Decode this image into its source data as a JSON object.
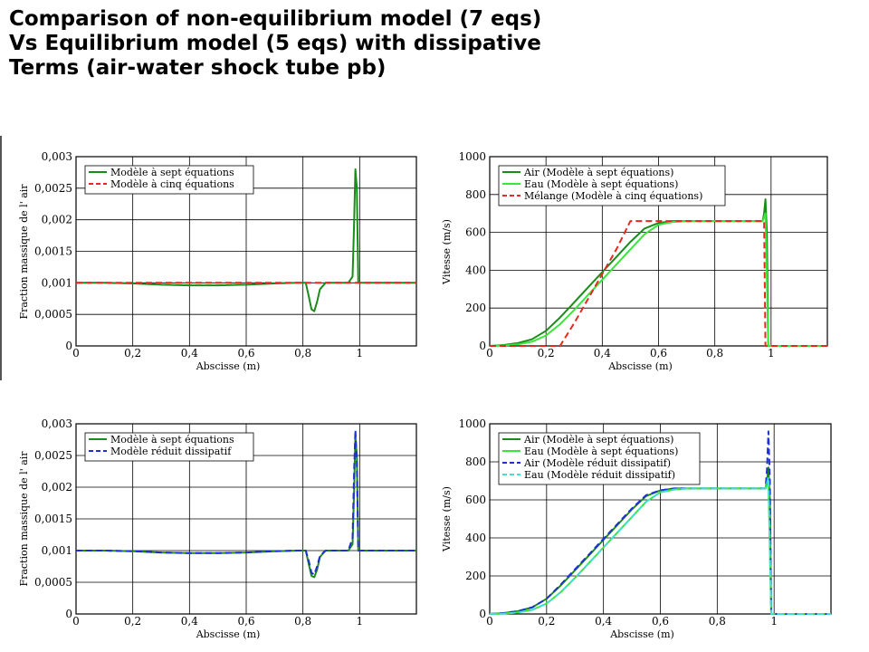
{
  "title": {
    "line1": "Comparison of non-equilibrium model (7 eqs)",
    "line2": "Vs Equilibrium model (5 eqs) with dissipative",
    "line3": "Terms (air-water shock tube pb)"
  },
  "chart_data": [
    {
      "type": "line",
      "xlabel": "Abscisse (m)",
      "ylabel": "Fraction massique de l' air",
      "xlim": [
        0,
        1.2
      ],
      "ylim": [
        0,
        0.003
      ],
      "xticks": [
        "0",
        "0,2",
        "0,4",
        "0,6",
        "0,8",
        "1"
      ],
      "yticks": [
        "0",
        "0,0005",
        "0,001",
        "0,0015",
        "0,002",
        "0,0025",
        "0,003"
      ],
      "grid": true,
      "legend_position": "top-left",
      "series": [
        {
          "name": "Modèle à sept équations",
          "color": "#1a8c1a",
          "style": "solid",
          "x": [
            0,
            0.1,
            0.2,
            0.3,
            0.4,
            0.5,
            0.6,
            0.7,
            0.78,
            0.81,
            0.82,
            0.83,
            0.84,
            0.85,
            0.86,
            0.88,
            0.92,
            0.96,
            0.975,
            0.98,
            0.985,
            0.99,
            0.995,
            1.0,
            1.1,
            1.2
          ],
          "y": [
            0.001,
            0.001,
            0.00099,
            0.00097,
            0.00096,
            0.00096,
            0.00097,
            0.00099,
            0.001,
            0.001,
            0.0008,
            0.00058,
            0.00055,
            0.0007,
            0.0009,
            0.001,
            0.001,
            0.001,
            0.0011,
            0.0019,
            0.0028,
            0.0025,
            0.001,
            0.001,
            0.001,
            0.001
          ]
        },
        {
          "name": "Modèle à cinq équations",
          "color": "#e8281e",
          "style": "dashed",
          "x": [
            0,
            0.2,
            0.4,
            0.6,
            0.8,
            1.0,
            1.2
          ],
          "y": [
            0.001,
            0.001,
            0.001,
            0.001,
            0.001,
            0.001,
            0.001
          ]
        }
      ]
    },
    {
      "type": "line",
      "xlabel": "Abscisse (m)",
      "ylabel": "Vitesse (m/s)",
      "xlim": [
        0,
        1.2
      ],
      "ylim": [
        0,
        1000
      ],
      "xticks": [
        "0",
        "0,2",
        "0,4",
        "0,6",
        "0,8",
        "1"
      ],
      "yticks": [
        "0",
        "200",
        "400",
        "600",
        "800",
        "1000"
      ],
      "grid": true,
      "legend_position": "top-left",
      "series": [
        {
          "name": "Air (Modèle à sept équations)",
          "color": "#1a8c1a",
          "style": "solid",
          "x": [
            0,
            0.05,
            0.1,
            0.15,
            0.2,
            0.25,
            0.3,
            0.35,
            0.4,
            0.45,
            0.5,
            0.55,
            0.6,
            0.65,
            0.7,
            0.8,
            0.9,
            0.97,
            0.975,
            0.98,
            0.985,
            0.99,
            1.0,
            1.1,
            1.2
          ],
          "y": [
            0,
            5,
            15,
            35,
            80,
            150,
            230,
            310,
            390,
            470,
            550,
            620,
            650,
            660,
            660,
            660,
            660,
            660,
            700,
            775,
            600,
            0,
            0,
            0,
            0
          ]
        },
        {
          "name": "Eau (Modèle à sept équations)",
          "color": "#39e639",
          "style": "solid",
          "x": [
            0,
            0.05,
            0.1,
            0.15,
            0.2,
            0.25,
            0.3,
            0.35,
            0.4,
            0.45,
            0.5,
            0.55,
            0.6,
            0.65,
            0.7,
            0.8,
            0.9,
            0.97,
            0.975,
            0.98,
            0.99,
            1.0,
            1.1,
            1.2
          ],
          "y": [
            0,
            2,
            8,
            22,
            55,
            115,
            190,
            270,
            350,
            430,
            510,
            590,
            640,
            655,
            660,
            660,
            660,
            660,
            680,
            700,
            0,
            0,
            0,
            0
          ]
        },
        {
          "name": "Mélange (Modèle à cinq équations)",
          "color": "#e8281e",
          "style": "dashed",
          "x": [
            0,
            0.25,
            0.3,
            0.35,
            0.4,
            0.45,
            0.5,
            0.55,
            0.6,
            0.7,
            0.8,
            0.9,
            0.975,
            0.98,
            1.0,
            1.1,
            1.2
          ],
          "y": [
            0,
            0,
            120,
            250,
            380,
            510,
            660,
            660,
            660,
            660,
            660,
            660,
            660,
            0,
            0,
            0,
            0
          ]
        }
      ]
    },
    {
      "type": "line",
      "xlabel": "Abscisse (m)",
      "ylabel": "Fraction massique de l' air",
      "xlim": [
        0,
        1.2
      ],
      "ylim": [
        0,
        0.003
      ],
      "xticks": [
        "0",
        "0,2",
        "0,4",
        "0,6",
        "0,8",
        "1"
      ],
      "yticks": [
        "0",
        "0,0005",
        "0,001",
        "0,0015",
        "0,002",
        "0,0025",
        "0,003"
      ],
      "grid": true,
      "legend_position": "top-left",
      "series": [
        {
          "name": "Modèle à sept équations",
          "color": "#1a8c1a",
          "style": "solid",
          "x": [
            0,
            0.1,
            0.2,
            0.3,
            0.4,
            0.5,
            0.6,
            0.7,
            0.78,
            0.81,
            0.82,
            0.83,
            0.84,
            0.85,
            0.86,
            0.88,
            0.92,
            0.96,
            0.975,
            0.98,
            0.985,
            0.99,
            0.995,
            1.0,
            1.1,
            1.2
          ],
          "y": [
            0.001,
            0.001,
            0.00099,
            0.00097,
            0.00096,
            0.00096,
            0.00097,
            0.00099,
            0.001,
            0.001,
            0.0008,
            0.0006,
            0.00058,
            0.0007,
            0.0009,
            0.001,
            0.001,
            0.001,
            0.0011,
            0.0019,
            0.0028,
            0.0025,
            0.001,
            0.001,
            0.001,
            0.001
          ]
        },
        {
          "name": "Modèle réduit dissipatif",
          "color": "#1f2fd6",
          "style": "dashed",
          "x": [
            0,
            0.1,
            0.2,
            0.3,
            0.4,
            0.5,
            0.6,
            0.7,
            0.78,
            0.81,
            0.82,
            0.83,
            0.84,
            0.85,
            0.86,
            0.88,
            0.92,
            0.96,
            0.975,
            0.98,
            0.985,
            0.99,
            0.995,
            1.0,
            1.1,
            1.2
          ],
          "y": [
            0.001,
            0.001,
            0.00099,
            0.00097,
            0.00096,
            0.00096,
            0.00097,
            0.00099,
            0.001,
            0.001,
            0.00085,
            0.00065,
            0.00062,
            0.00075,
            0.00092,
            0.001,
            0.001,
            0.001,
            0.0012,
            0.0022,
            0.0029,
            0.0024,
            0.001,
            0.001,
            0.001,
            0.001
          ]
        }
      ]
    },
    {
      "type": "line",
      "xlabel": "Abscisse (m)",
      "ylabel": "Vitesse (m/s)",
      "xlim": [
        0,
        1.2
      ],
      "ylim": [
        0,
        1000
      ],
      "xticks": [
        "0",
        "0,2",
        "0,4",
        "0,6",
        "0,8",
        "1"
      ],
      "yticks": [
        "0",
        "200",
        "400",
        "600",
        "800",
        "1000"
      ],
      "grid": true,
      "legend_position": "top-left",
      "series": [
        {
          "name": "Air (Modèle à sept équations)",
          "color": "#1a8c1a",
          "style": "solid",
          "x": [
            0,
            0.05,
            0.1,
            0.15,
            0.2,
            0.25,
            0.3,
            0.35,
            0.4,
            0.45,
            0.5,
            0.55,
            0.6,
            0.65,
            0.7,
            0.8,
            0.9,
            0.97,
            0.975,
            0.98,
            0.985,
            0.99,
            1.0,
            1.1,
            1.2
          ],
          "y": [
            0,
            5,
            15,
            35,
            80,
            150,
            230,
            310,
            390,
            470,
            550,
            620,
            650,
            660,
            660,
            660,
            660,
            660,
            700,
            770,
            600,
            0,
            0,
            0,
            0
          ]
        },
        {
          "name": "Eau (Modèle à sept équations)",
          "color": "#39e639",
          "style": "solid",
          "x": [
            0,
            0.05,
            0.1,
            0.15,
            0.2,
            0.25,
            0.3,
            0.35,
            0.4,
            0.45,
            0.5,
            0.55,
            0.6,
            0.65,
            0.7,
            0.8,
            0.9,
            0.97,
            0.975,
            0.98,
            0.99,
            1.0,
            1.1,
            1.2
          ],
          "y": [
            0,
            2,
            8,
            22,
            55,
            115,
            190,
            270,
            350,
            430,
            510,
            590,
            640,
            655,
            660,
            660,
            660,
            660,
            680,
            700,
            0,
            0,
            0,
            0
          ]
        },
        {
          "name": "Air (Modèle réduit dissipatif)",
          "color": "#1f2fd6",
          "style": "dashed",
          "x": [
            0,
            0.05,
            0.1,
            0.15,
            0.2,
            0.25,
            0.3,
            0.35,
            0.4,
            0.45,
            0.5,
            0.55,
            0.6,
            0.65,
            0.7,
            0.8,
            0.9,
            0.97,
            0.975,
            0.98,
            0.985,
            0.99,
            1.0,
            1.1,
            1.2
          ],
          "y": [
            0,
            5,
            15,
            35,
            80,
            155,
            235,
            315,
            395,
            475,
            555,
            625,
            650,
            660,
            660,
            660,
            660,
            660,
            760,
            960,
            700,
            0,
            0,
            0,
            0
          ]
        },
        {
          "name": "Eau (Modèle réduit dissipatif)",
          "color": "#40e0d0",
          "style": "dashed",
          "x": [
            0,
            0.05,
            0.1,
            0.15,
            0.2,
            0.25,
            0.3,
            0.35,
            0.4,
            0.45,
            0.5,
            0.55,
            0.6,
            0.65,
            0.7,
            0.8,
            0.9,
            0.97,
            0.975,
            0.98,
            0.99,
            1.0,
            1.1,
            1.2
          ],
          "y": [
            0,
            2,
            8,
            22,
            55,
            115,
            190,
            270,
            350,
            430,
            510,
            590,
            640,
            655,
            660,
            660,
            660,
            660,
            690,
            720,
            0,
            0,
            0,
            0
          ]
        }
      ]
    }
  ]
}
